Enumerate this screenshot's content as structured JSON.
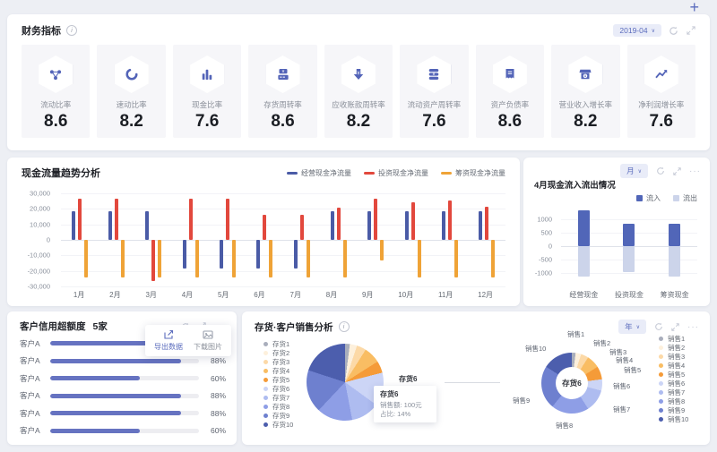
{
  "icons": {
    "plus": "+",
    "chevron": "∨",
    "more": "···",
    "info": "i"
  },
  "finance_card": {
    "title": "财务指标",
    "date": "2019-04",
    "kpis": [
      {
        "label": "流动比率",
        "value": "8.6",
        "icon": "share-nodes-icon"
      },
      {
        "label": "速动比率",
        "value": "8.2",
        "icon": "ring-arrow-icon"
      },
      {
        "label": "现金比率",
        "value": "7.6",
        "icon": "bar-chart-icon"
      },
      {
        "label": "存货周转率",
        "value": "8.6",
        "icon": "cash-register-icon"
      },
      {
        "label": "应收账款周转率",
        "value": "8.2",
        "icon": "arrow-down-yuan-icon"
      },
      {
        "label": "流动资产周转率",
        "value": "7.6",
        "icon": "coin-stack-icon"
      },
      {
        "label": "资产负债率",
        "value": "8.6",
        "icon": "receipt-icon"
      },
      {
        "label": "营业收入增长率",
        "value": "8.2",
        "icon": "shop-icon"
      },
      {
        "label": "净利润增长率",
        "value": "7.6",
        "icon": "trend-line-icon"
      }
    ]
  },
  "trend_card": {
    "title": "现金流量趋势分析"
  },
  "inout_card": {
    "title": "4月现金流入流出情况",
    "period": "月"
  },
  "credit_card": {
    "title": "客户信用超额度",
    "count": "5家",
    "menu": {
      "export": "导出数据",
      "download": "下载图片"
    }
  },
  "sales_card": {
    "title": "存货·客户销售分析",
    "period": "年",
    "pie_slice_label": "存货6",
    "donut_center": "存货6",
    "tooltip": {
      "title": "存货6",
      "sales": "销售额: 100元",
      "ratio": "占比: 14%"
    }
  },
  "chart_data": [
    {
      "id": "cash_flow_trend",
      "type": "bar",
      "title": "现金流量趋势分析",
      "categories": [
        "1月",
        "2月",
        "3月",
        "4月",
        "5月",
        "6月",
        "7月",
        "8月",
        "9月",
        "10月",
        "11月",
        "12月"
      ],
      "series": [
        {
          "name": "经营现金净流量",
          "color": "#4a5ba6",
          "values": [
            18500,
            18500,
            18500,
            -18500,
            -18500,
            -18500,
            -18500,
            18500,
            18500,
            18500,
            18500,
            18500
          ]
        },
        {
          "name": "投资现金净流量",
          "color": "#e2483d",
          "values": [
            26500,
            26500,
            -26500,
            26500,
            26500,
            16000,
            16000,
            20500,
            26500,
            24500,
            25500,
            21500
          ]
        },
        {
          "name": "筹资现金净流量",
          "color": "#efa337",
          "values": [
            -24000,
            -24000,
            -24000,
            -24000,
            -24000,
            -24000,
            -24000,
            -24000,
            -13000,
            -24000,
            -24000,
            -24000
          ]
        }
      ],
      "ylim": [
        -30000,
        30000
      ],
      "yticks": [
        "30,000",
        "20,000",
        "10,000",
        "0",
        "-10,000",
        "-20,000",
        "-30,000"
      ],
      "grid": true,
      "legend_position": "top-right"
    },
    {
      "id": "april_cash_in_out",
      "type": "bar",
      "stacked": true,
      "title": "4月现金流入流出情况",
      "categories": [
        "经营现金",
        "投资现金",
        "筹资现金"
      ],
      "series": [
        {
          "name": "流入",
          "color": "#5166b8",
          "values": [
            1320,
            820,
            820
          ]
        },
        {
          "name": "流出",
          "color": "#ccd4ea",
          "values": [
            -1140,
            -960,
            -1140
          ]
        }
      ],
      "ylim": [
        -1500,
        1500
      ],
      "yticks": [
        1000,
        500,
        0,
        -500,
        -1000
      ],
      "grid": true,
      "legend_position": "top-right"
    },
    {
      "id": "customer_credit_overage",
      "type": "bar",
      "orientation": "horizontal",
      "categories": [
        "客户A",
        "客户A",
        "客户A",
        "客户A",
        "客户A",
        "客户A"
      ],
      "values": [
        88,
        88,
        60,
        88,
        88,
        60
      ],
      "unit": "%",
      "xlim": [
        0,
        100
      ],
      "bar_color": "#6673c1",
      "track_color": "#ededf1"
    },
    {
      "id": "inventory_sales_pie",
      "type": "pie",
      "labels": [
        "存货1",
        "存货2",
        "存货3",
        "存货4",
        "存货5",
        "存货6",
        "存货7",
        "存货8",
        "存货9",
        "存货10"
      ],
      "values": [
        2,
        3,
        4,
        7,
        5,
        14,
        12,
        15,
        18,
        20
      ],
      "colors": [
        "#a9aebc",
        "#fdf0dc",
        "#fcd9a7",
        "#f9bd63",
        "#f59b38",
        "#ccd5f6",
        "#aebcf0",
        "#8e9ee6",
        "#6e80cf",
        "#4c5ead"
      ],
      "highlighted": "存货6",
      "legend_position": "left"
    },
    {
      "id": "sales_by_customer_donut",
      "type": "pie",
      "donut": true,
      "center_label": "存货6",
      "labels": [
        "销售1",
        "销售2",
        "销售3",
        "销售4",
        "销售5",
        "销售6",
        "销售7",
        "销售8",
        "销售9",
        "销售10"
      ],
      "values": [
        2,
        3,
        4,
        7,
        7,
        6,
        12,
        20,
        23,
        16
      ],
      "colors": [
        "#a9aebc",
        "#fdf0dc",
        "#fcd9a7",
        "#f9bd63",
        "#f59b38",
        "#ccd5f6",
        "#aebcf0",
        "#8e9ee6",
        "#6e80cf",
        "#4c5ead"
      ],
      "legend_position": "right"
    }
  ]
}
